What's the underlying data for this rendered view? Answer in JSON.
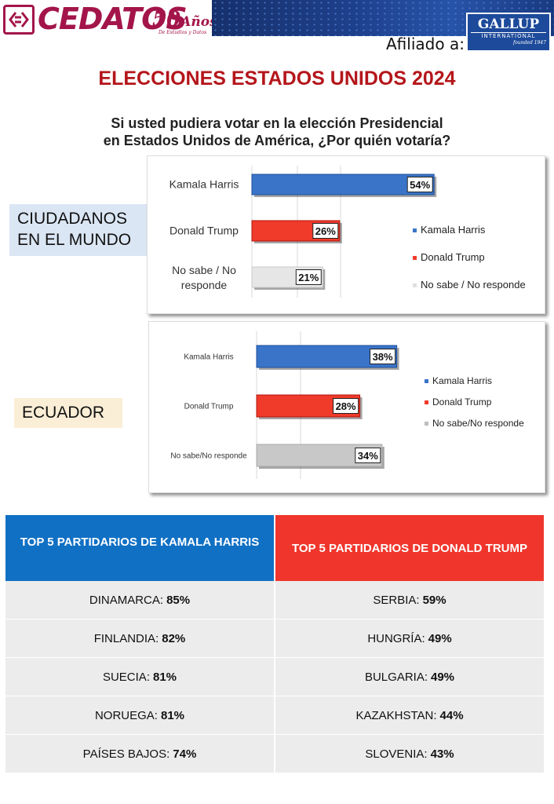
{
  "header": {
    "logo_name": "CEDATOS",
    "logo_years": "50",
    "logo_years_word": "Años",
    "logo_tagline": "De Estudios y Datos",
    "affiliate_label": "Afiliado a:",
    "gallup_name": "GALLUP",
    "gallup_sub": "INTERNATIONAL",
    "gallup_founded": "founded 1947"
  },
  "title": "ELECCIONES ESTADOS UNIDOS 2024",
  "question_line1": "Si usted pudiera votar en la elección Presidencial",
  "question_line2": "en Estados Unidos de América, ¿Por quién votaría?",
  "colors": {
    "harris": "#3a74c9",
    "trump": "#f03a2a",
    "undecided": "#e6e6e6",
    "undecided_ec": "#c8c8c8",
    "title_red": "#b4161b",
    "world_label_bg": "#dbe6f4",
    "ecuador_label_bg": "#fbeed6"
  },
  "chart_data": [
    {
      "type": "bar",
      "region_label_1": "CIUDADANOS",
      "region_label_2": "EN EL MUNDO",
      "categories": [
        "Kamala Harris",
        "Donald Trump",
        "No sabe / No responde"
      ],
      "values": [
        54,
        26,
        21
      ],
      "value_labels": [
        "54%",
        "26%",
        "21%"
      ],
      "legend": [
        "Kamala Harris",
        "Donald Trump",
        "No sabe / No responde"
      ]
    },
    {
      "type": "bar",
      "region_label_1": "ECUADOR",
      "categories": [
        "Kamala Harris",
        "Donald Trump",
        "No sabe/No responde"
      ],
      "values": [
        38,
        28,
        34
      ],
      "value_labels": [
        "38%",
        "28%",
        "34%"
      ],
      "legend": [
        "Kamala Harris",
        "Donald Trump",
        "No sabe/No responde"
      ]
    }
  ],
  "harris_table": {
    "header": "TOP 5 PARTIDARIOS DE KAMALA HARRIS",
    "rows": [
      {
        "country": "DINAMARCA:",
        "value": "85%"
      },
      {
        "country": "FINLANDIA:",
        "value": "82%"
      },
      {
        "country": "SUECIA:",
        "value": "81%"
      },
      {
        "country": "NORUEGA:",
        "value": "81%"
      },
      {
        "country": "PAÍSES BAJOS:",
        "value": "74%"
      }
    ]
  },
  "trump_table": {
    "header": "TOP 5 PARTIDARIOS DE DONALD TRUMP",
    "rows": [
      {
        "country": "SERBIA:",
        "value": "59%"
      },
      {
        "country": "HUNGRÍA:",
        "value": "49%"
      },
      {
        "country": "BULGARIA:",
        "value": "49%"
      },
      {
        "country": "KAZAKHSTAN:",
        "value": "44%"
      },
      {
        "country": "SLOVENIA:",
        "value": "43%"
      }
    ]
  }
}
